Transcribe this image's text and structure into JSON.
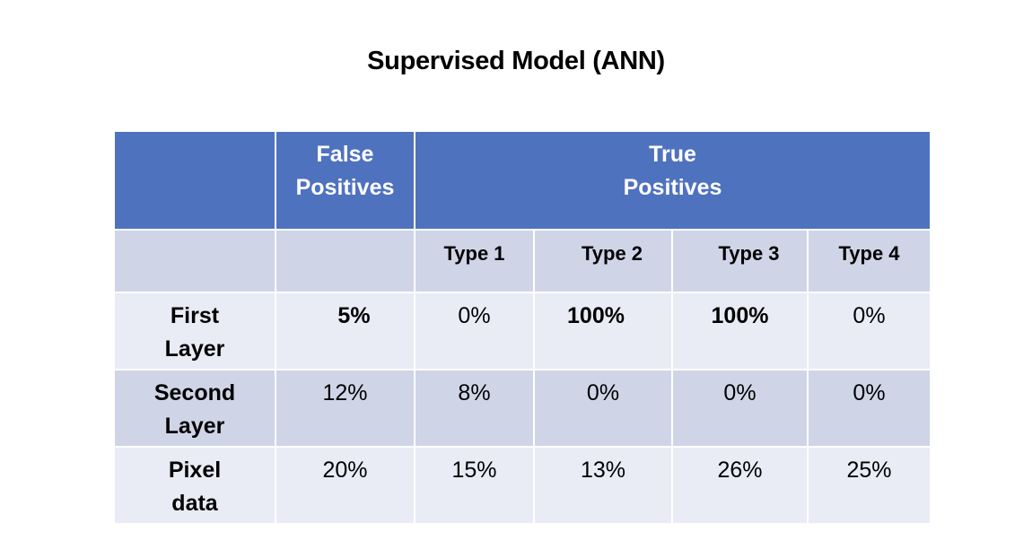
{
  "title": "Supervised Model (ANN)",
  "table": {
    "header": {
      "false_positives": "False Positives",
      "true_positives": "True Positives"
    },
    "types": [
      "Type 1",
      "Type 2",
      "Type 3",
      "Type 4"
    ],
    "rows": [
      {
        "label": "First Layer",
        "false_positives": "5%",
        "values": [
          "0%",
          "100%",
          "100%",
          "0%"
        ],
        "bold": [
          true,
          false,
          true,
          true,
          false
        ]
      },
      {
        "label": "Second Layer",
        "false_positives": "12%",
        "values": [
          "8%",
          "0%",
          "0%",
          "0%"
        ],
        "bold": [
          false,
          false,
          false,
          false,
          false
        ]
      },
      {
        "label": "Pixel data",
        "false_positives": "20%",
        "values": [
          "15%",
          "13%",
          "26%",
          "25%"
        ],
        "bold": [
          false,
          false,
          false,
          false,
          false
        ]
      }
    ]
  },
  "colors": {
    "header_blue": "#4f72bf",
    "row_light": "#e9ebf5",
    "row_dark": "#cfd5e7"
  }
}
